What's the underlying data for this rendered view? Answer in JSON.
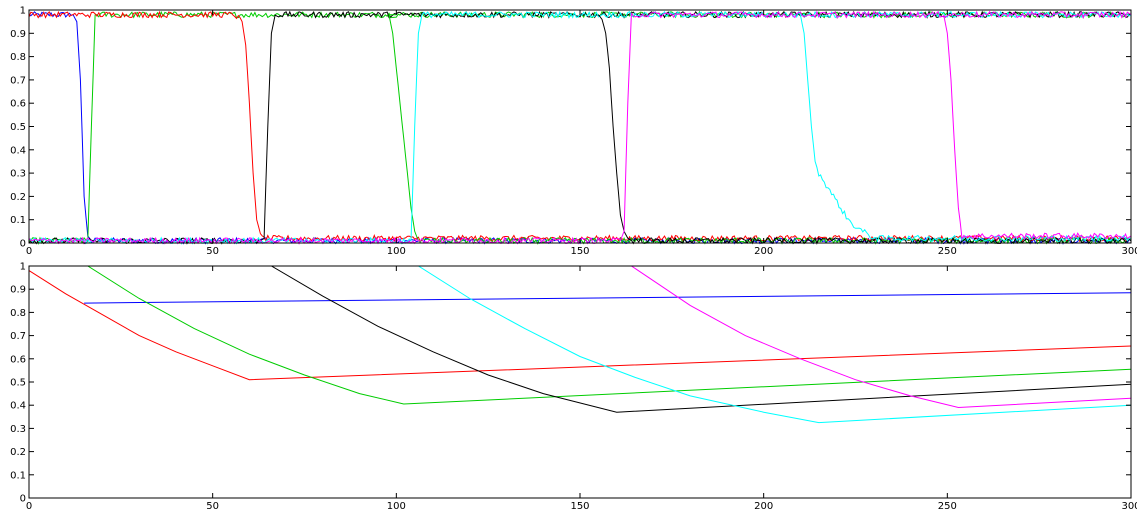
{
  "chart_data": [
    {
      "type": "line",
      "title": "",
      "xlabel": "",
      "ylabel": "",
      "xlim": [
        0,
        300
      ],
      "ylim": [
        0,
        1
      ],
      "grid": false,
      "xticks": [
        "0",
        "50",
        "100",
        "150",
        "200",
        "250",
        "300"
      ],
      "yticks": [
        "0",
        "0.1",
        "0.2",
        "0.3",
        "0.4",
        "0.5",
        "0.6",
        "0.7",
        "0.8",
        "0.9",
        "1"
      ],
      "noise": true,
      "series": [
        {
          "color": "#0000ff",
          "x": [
            0,
            12,
            13,
            14,
            15,
            16,
            17,
            300
          ],
          "y": [
            0.98,
            0.98,
            0.95,
            0.7,
            0.2,
            0.03,
            0.01,
            0.01
          ]
        },
        {
          "color": "#00cc00",
          "x": [
            0,
            16,
            17,
            18,
            300
          ],
          "y": [
            0.01,
            0.01,
            0.5,
            0.98,
            0.98
          ]
        },
        {
          "color": "#ff0000",
          "x": [
            0,
            56,
            58,
            59,
            60,
            61,
            62,
            63,
            64,
            300
          ],
          "y": [
            0.98,
            0.98,
            0.95,
            0.85,
            0.6,
            0.3,
            0.1,
            0.04,
            0.02,
            0.02
          ]
        },
        {
          "color": "#000000",
          "x": [
            0,
            63,
            64,
            65,
            66,
            67,
            300
          ],
          "y": [
            0.01,
            0.01,
            0.02,
            0.5,
            0.9,
            0.98,
            0.98
          ]
        },
        {
          "color": "#00cc00",
          "x": [
            100,
            98,
            99,
            100,
            101,
            102,
            103,
            104,
            105,
            106,
            300
          ],
          "y": [
            0.98,
            0.98,
            0.9,
            0.75,
            0.6,
            0.45,
            0.3,
            0.15,
            0.05,
            0.01,
            0.01
          ]
        },
        {
          "color": "#00ffff",
          "x": [
            0,
            104,
            105,
            106,
            107,
            300
          ],
          "y": [
            0.01,
            0.01,
            0.5,
            0.9,
            0.98,
            0.98
          ]
        },
        {
          "color": "#000000",
          "x": [
            155,
            156,
            157,
            158,
            159,
            160,
            161,
            162,
            163,
            164,
            300
          ],
          "y": [
            0.98,
            0.96,
            0.9,
            0.75,
            0.5,
            0.3,
            0.12,
            0.05,
            0.02,
            0.01,
            0.01
          ]
        },
        {
          "color": "#ff00ff",
          "x": [
            0,
            161,
            162,
            163,
            164,
            300
          ],
          "y": [
            0.01,
            0.01,
            0.05,
            0.6,
            0.98,
            0.98
          ]
        },
        {
          "color": "#00ffff",
          "x": [
            210,
            211,
            212,
            213,
            214,
            215,
            217,
            219,
            221,
            223,
            225,
            227,
            229,
            231,
            235,
            300
          ],
          "y": [
            0.98,
            0.9,
            0.7,
            0.5,
            0.35,
            0.3,
            0.25,
            0.2,
            0.15,
            0.1,
            0.07,
            0.05,
            0.03,
            0.02,
            0.02,
            0.02
          ]
        },
        {
          "color": "#ff00ff",
          "x": [
            249,
            250,
            251,
            252,
            253,
            254,
            300
          ],
          "y": [
            0.98,
            0.9,
            0.7,
            0.4,
            0.15,
            0.03,
            0.03
          ]
        }
      ]
    },
    {
      "type": "line",
      "title": "",
      "xlabel": "",
      "ylabel": "",
      "xlim": [
        0,
        300
      ],
      "ylim": [
        0,
        1
      ],
      "grid": false,
      "xticks": [
        "0",
        "50",
        "100",
        "150",
        "200",
        "250",
        "300"
      ],
      "yticks": [
        "0",
        "0.1",
        "0.2",
        "0.3",
        "0.4",
        "0.5",
        "0.6",
        "0.7",
        "0.8",
        "0.9",
        "1"
      ],
      "series": [
        {
          "color": "#ff0000",
          "x": [
            0,
            10,
            20,
            30,
            40,
            50,
            60,
            300
          ],
          "y": [
            0.98,
            0.88,
            0.79,
            0.7,
            0.63,
            0.57,
            0.51,
            0.655
          ]
        },
        {
          "color": "#0000ff",
          "x": [
            15,
            300
          ],
          "y": [
            0.84,
            0.885
          ]
        },
        {
          "color": "#00cc00",
          "x": [
            0,
            16,
            30,
            45,
            60,
            75,
            90,
            102,
            300
          ],
          "y": [
            1,
            1,
            0.86,
            0.73,
            0.62,
            0.53,
            0.45,
            0.405,
            0.555
          ]
        },
        {
          "color": "#000000",
          "x": [
            0,
            66,
            80,
            95,
            110,
            125,
            140,
            160,
            300
          ],
          "y": [
            1,
            1,
            0.87,
            0.74,
            0.63,
            0.53,
            0.45,
            0.37,
            0.49
          ]
        },
        {
          "color": "#00ffff",
          "x": [
            0,
            106,
            120,
            135,
            150,
            165,
            180,
            200,
            215,
            300
          ],
          "y": [
            1,
            1,
            0.86,
            0.73,
            0.61,
            0.52,
            0.44,
            0.37,
            0.325,
            0.4
          ]
        },
        {
          "color": "#ff00ff",
          "x": [
            0,
            164,
            180,
            195,
            210,
            225,
            240,
            253,
            300
          ],
          "y": [
            1,
            1,
            0.83,
            0.7,
            0.6,
            0.51,
            0.44,
            0.39,
            0.43
          ]
        }
      ]
    }
  ]
}
